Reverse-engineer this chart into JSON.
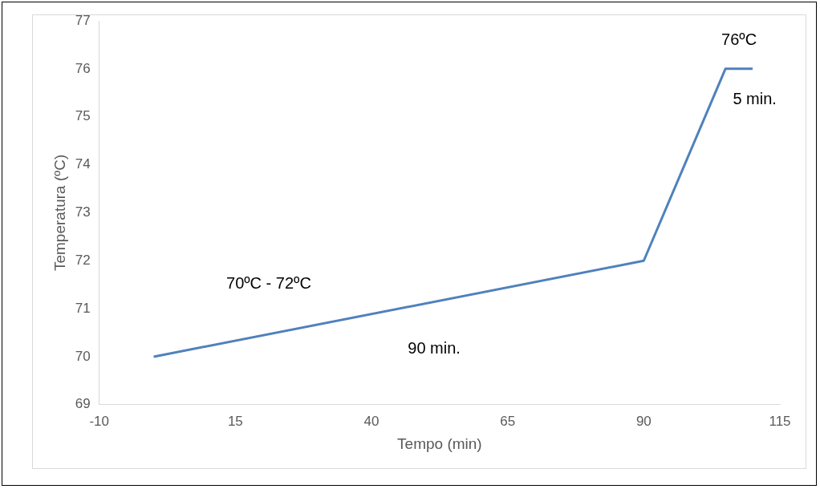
{
  "chart_data": {
    "type": "line",
    "xlabel": "Tempo (min)",
    "ylabel": "Temperatura (ºC)",
    "x": [
      0,
      90,
      105,
      110
    ],
    "series": [
      {
        "color": "#4f81bd",
        "values": [
          70,
          72,
          76,
          76
        ]
      }
    ],
    "xlim": [
      -10,
      115
    ],
    "xticks": [
      -10,
      15,
      40,
      65,
      90,
      115
    ],
    "ylim": [
      69,
      77
    ],
    "yticks": [
      69,
      70,
      71,
      72,
      73,
      74,
      75,
      76,
      77
    ],
    "grid": false,
    "legend": false,
    "marker": "none",
    "line_style": "solid",
    "annotations": [
      "76ºC",
      "5 min.",
      "70ºC - 72ºC",
      "90 min."
    ]
  }
}
